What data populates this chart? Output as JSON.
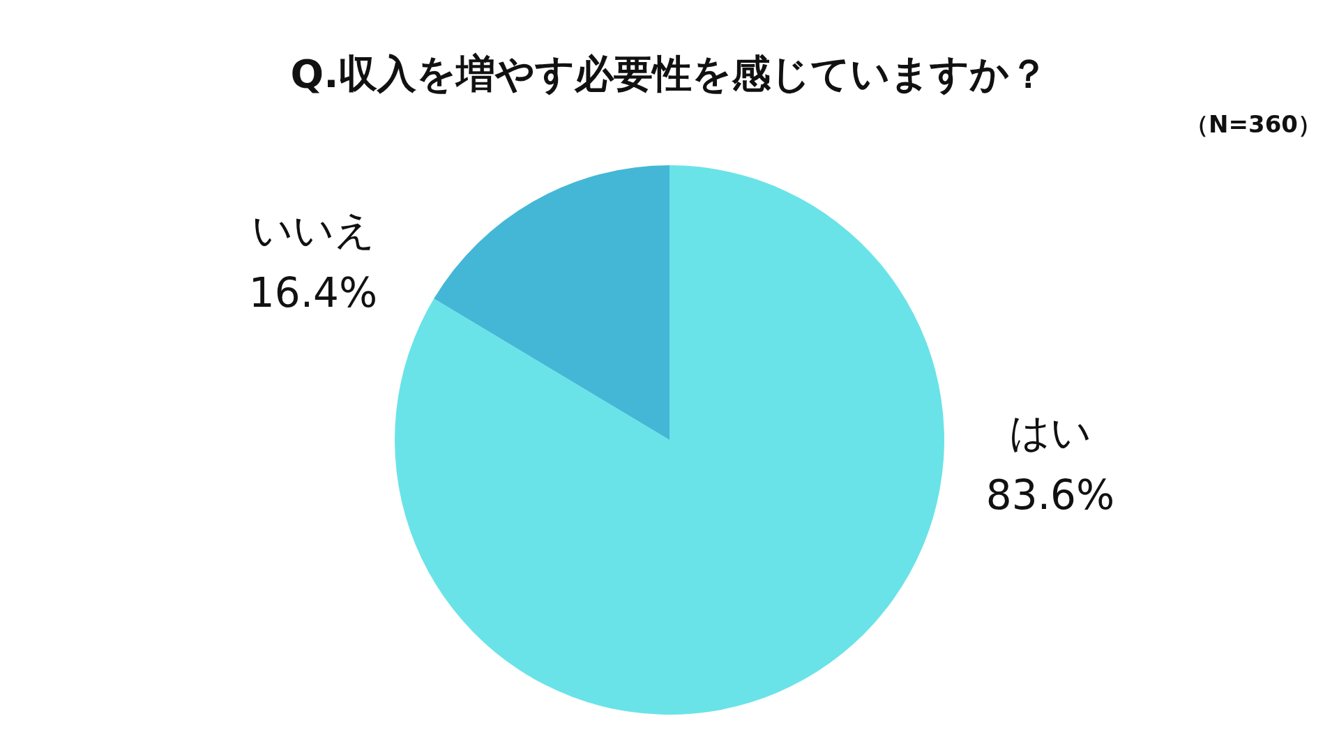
{
  "chart_data": {
    "type": "pie",
    "title": "Q.収入を増やす必要性を感じていますか？",
    "annotations": [
      "（N=360）"
    ],
    "categories": [
      "はい",
      "いいえ"
    ],
    "values": [
      83.6,
      16.4
    ],
    "colors": [
      "#6ae3e8",
      "#44b7d6"
    ],
    "value_labels": [
      "83.6%",
      "16.4%"
    ]
  }
}
